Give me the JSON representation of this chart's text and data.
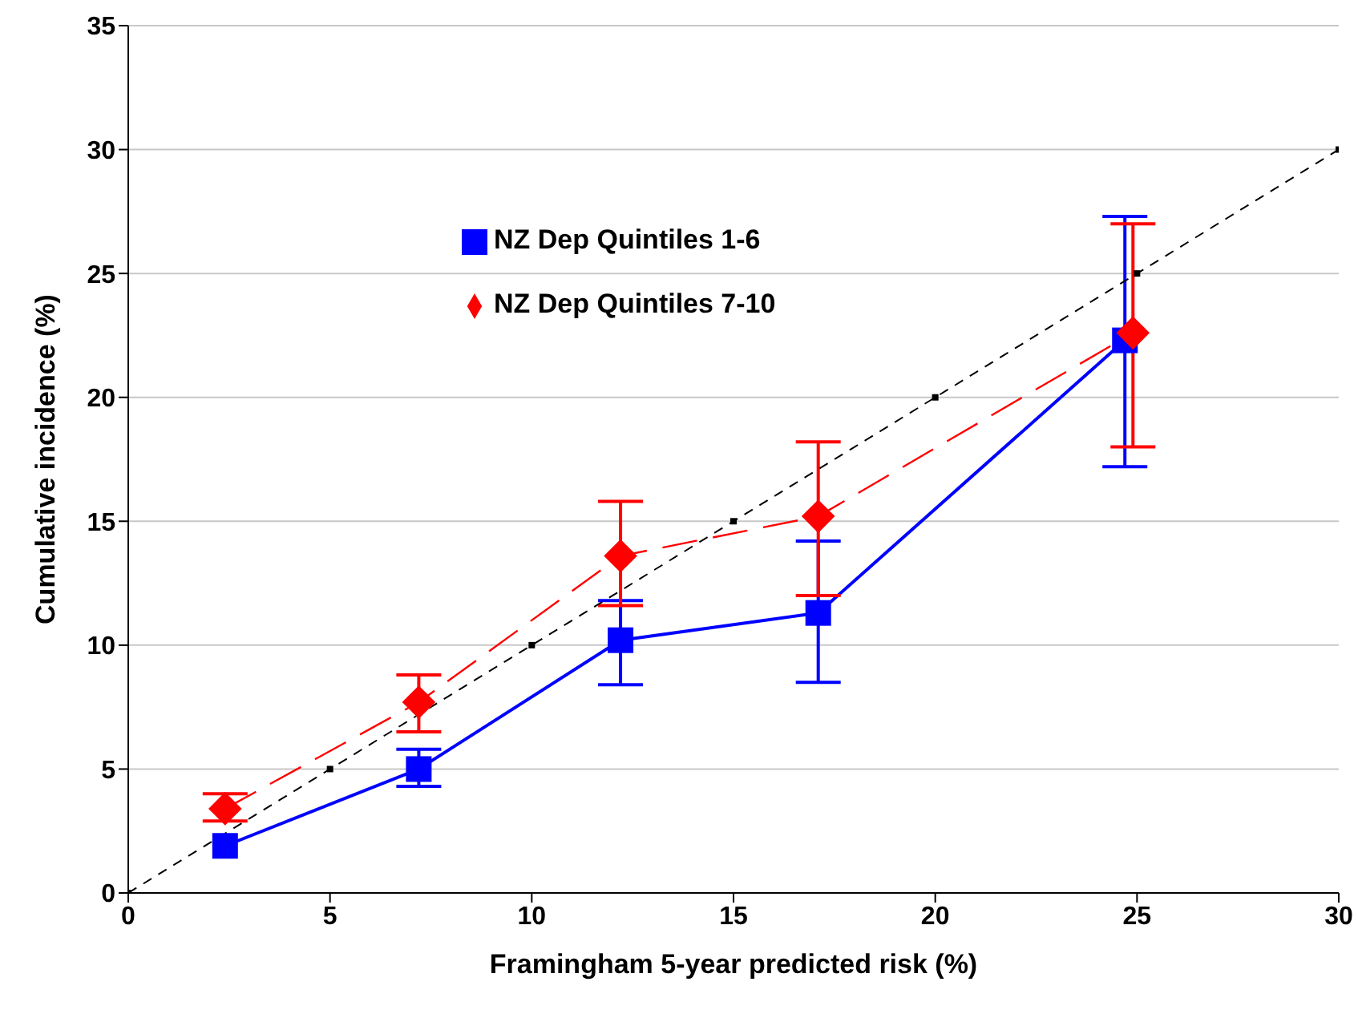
{
  "chart_data": {
    "type": "line",
    "xlabel": "Framingham 5-year predicted risk (%)",
    "ylabel": "Cumulative incidence (%)",
    "xlim": [
      0,
      30
    ],
    "xticks": [
      0,
      5,
      10,
      15,
      20,
      25,
      30
    ],
    "ylim": [
      0,
      35
    ],
    "yticks": [
      0,
      5,
      10,
      15,
      20,
      25,
      30,
      35
    ],
    "grid": "y",
    "legend": "top left",
    "series": [
      {
        "name": "NZ Dep Quintiles 1-6",
        "color": "#0000ff",
        "marker": "square",
        "line_style": "solid",
        "x": [
          2.4,
          7.2,
          12.2,
          17.1,
          24.7
        ],
        "values": [
          1.9,
          5.0,
          10.2,
          11.3,
          22.3
        ],
        "errors": [
          null,
          [
            4.3,
            5.8
          ],
          [
            8.4,
            11.8
          ],
          [
            8.5,
            14.2
          ],
          [
            17.2,
            27.3
          ]
        ]
      },
      {
        "name": "NZ Dep Quintiles 7-10",
        "color": "#ff0000",
        "marker": "diamond",
        "line_style": "dashed",
        "x": [
          2.4,
          7.2,
          12.2,
          17.1,
          24.9
        ],
        "values": [
          3.4,
          7.7,
          13.6,
          15.2,
          22.6
        ],
        "errors": [
          [
            2.9,
            4.0
          ],
          [
            6.5,
            8.8
          ],
          [
            11.6,
            15.8
          ],
          [
            12.0,
            18.2
          ],
          [
            18.0,
            27.0
          ]
        ]
      },
      {
        "color": "#000000",
        "marker": "square",
        "line_style": "dashed",
        "x": [
          0,
          5,
          10,
          15,
          20,
          25,
          30
        ],
        "values": [
          0,
          5,
          10,
          15,
          20,
          25,
          30
        ]
      }
    ]
  }
}
